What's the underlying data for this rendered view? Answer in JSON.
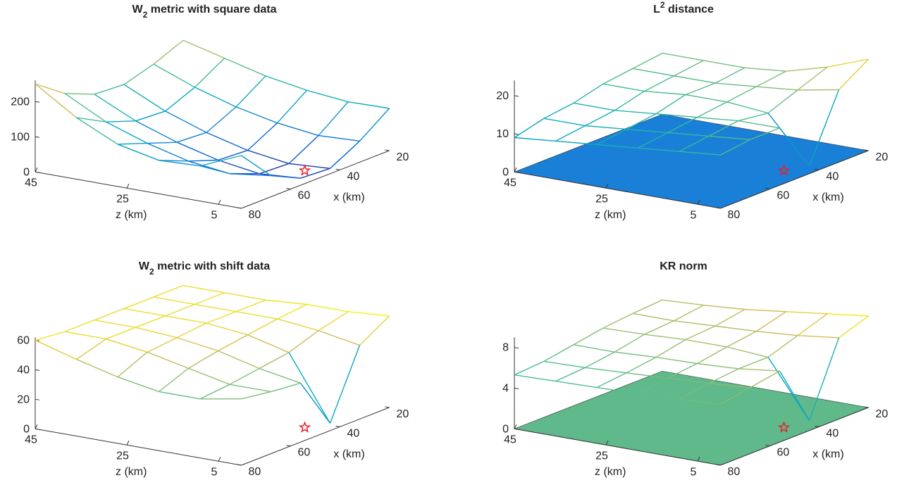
{
  "chart_data": [
    {
      "type": "surface",
      "title_parts": [
        {
          "text": "W"
        },
        {
          "text": "2",
          "shift": "sub"
        },
        {
          "text": " metric with square data"
        }
      ],
      "xlabel": "x (km)",
      "zlabel": "z (km)",
      "xlim": [
        20,
        80
      ],
      "xticks": [
        20,
        40,
        60,
        80
      ],
      "zlim": [
        0,
        45
      ],
      "zticks": [
        45,
        25,
        5
      ],
      "vlim": [
        0,
        260
      ],
      "vticks": [
        0,
        100,
        200
      ],
      "grid_x": [
        20,
        32,
        44,
        56,
        68,
        80
      ],
      "grid_z": [
        0,
        9,
        18,
        27,
        36,
        45
      ],
      "values": [
        [
          120,
          118,
          130,
          150,
          180,
          210
        ],
        [
          60,
          55,
          70,
          95,
          130,
          175
        ],
        [
          15,
          8,
          25,
          55,
          95,
          150
        ],
        [
          20,
          12,
          30,
          60,
          100,
          155
        ],
        [
          60,
          45,
          60,
          90,
          130,
          190
        ],
        [
          150,
          100,
          95,
          120,
          175,
          250
        ]
      ],
      "source": {
        "z": 5,
        "x": 45
      }
    },
    {
      "type": "surface",
      "title_parts": [
        {
          "text": "L"
        },
        {
          "text": "2",
          "shift": "super"
        },
        {
          "text": " distance"
        }
      ],
      "xlabel": "x (km)",
      "zlabel": "z (km)",
      "xlim": [
        20,
        80
      ],
      "xticks": [
        20,
        40,
        60,
        80
      ],
      "zlim": [
        0,
        45
      ],
      "zticks": [
        45,
        25,
        5
      ],
      "vlim": [
        0,
        24
      ],
      "vticks": [
        0,
        10,
        20
      ],
      "grid_x": [
        20,
        32,
        44,
        56,
        68,
        80
      ],
      "grid_z": [
        0,
        9,
        18,
        27,
        36,
        45
      ],
      "values": [
        [
          24,
          20,
          17,
          16,
          16,
          16
        ],
        [
          19,
          17,
          16,
          15,
          15,
          15
        ],
        [
          2,
          14,
          15,
          15,
          14,
          14
        ],
        [
          15,
          15,
          14,
          13,
          12,
          12
        ],
        [
          15,
          14,
          13,
          12,
          11,
          11
        ],
        [
          14,
          13,
          12,
          11,
          10,
          9
        ]
      ],
      "base_color": "#1a7fd6",
      "source": {
        "z": 5,
        "x": 45
      }
    },
    {
      "type": "surface",
      "title_parts": [
        {
          "text": "W"
        },
        {
          "text": "2",
          "shift": "sub"
        },
        {
          "text": " metric with shift data"
        }
      ],
      "xlabel": "x (km)",
      "zlabel": "z (km)",
      "xlim": [
        20,
        80
      ],
      "xticks": [
        20,
        40,
        60,
        80
      ],
      "zlim": [
        0,
        45
      ],
      "zticks": [
        45,
        25,
        5
      ],
      "vlim": [
        0,
        62
      ],
      "vticks": [
        0,
        20,
        40,
        60
      ],
      "grid_x": [
        20,
        32,
        44,
        56,
        68,
        80
      ],
      "grid_z": [
        0,
        9,
        18,
        27,
        36,
        45
      ],
      "values": [
        [
          62,
          60,
          60,
          58,
          58,
          58
        ],
        [
          50,
          55,
          58,
          58,
          58,
          58
        ],
        [
          5,
          48,
          55,
          58,
          58,
          58
        ],
        [
          40,
          45,
          52,
          56,
          58,
          58
        ],
        [
          42,
          42,
          48,
          54,
          58,
          58
        ],
        [
          45,
          40,
          40,
          45,
          52,
          60
        ]
      ],
      "source": {
        "z": 5,
        "x": 45
      }
    },
    {
      "type": "surface",
      "title_parts": [
        {
          "text": "KR norm"
        }
      ],
      "xlabel": "x (km)",
      "zlabel": "z (km)",
      "xlim": [
        20,
        80
      ],
      "xticks": [
        20,
        40,
        60,
        80
      ],
      "zlim": [
        0,
        45
      ],
      "zticks": [
        45,
        25,
        5
      ],
      "vlim": [
        0,
        9
      ],
      "vticks": [
        0,
        4,
        8
      ],
      "grid_x": [
        20,
        32,
        44,
        56,
        68,
        80
      ],
      "grid_z": [
        0,
        9,
        18,
        27,
        36,
        45
      ],
      "values": [
        [
          9,
          8.5,
          8,
          7.5,
          7.2,
          7
        ],
        [
          8,
          7.5,
          7.2,
          7,
          6.8,
          6.8
        ],
        [
          1,
          6.5,
          6.8,
          6.8,
          6.6,
          6.5
        ],
        [
          7,
          6.5,
          6.3,
          6.2,
          6,
          6
        ],
        [
          6.5,
          6.2,
          6,
          5.8,
          5.6,
          5.5
        ],
        [
          6,
          5.8,
          5.6,
          5.5,
          5.4,
          5.3
        ]
      ],
      "base_color": "#5fb98a",
      "source": {
        "z": 5,
        "x": 45
      }
    }
  ],
  "colormap": [
    "#352a87",
    "#0363e1",
    "#1485d4",
    "#06a7c6",
    "#38b99e",
    "#92bf73",
    "#d9ba56",
    "#f9fb0e"
  ]
}
